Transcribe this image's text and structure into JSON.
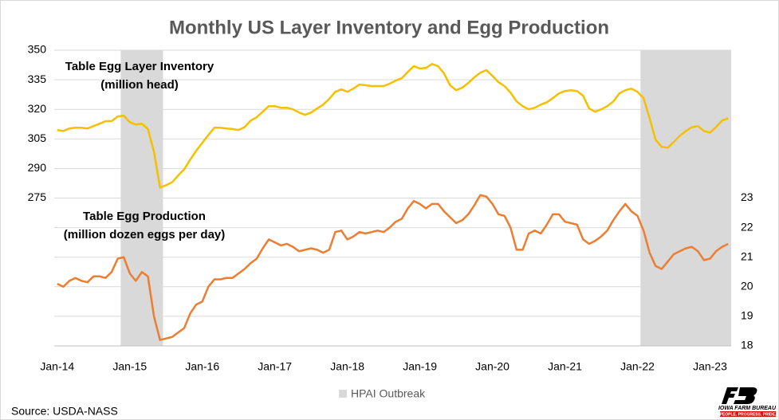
{
  "chart_data": {
    "type": "line",
    "title": "Monthly US Layer Inventory and Egg Production",
    "categories": [
      "Jan-14",
      null,
      null,
      null,
      null,
      null,
      null,
      null,
      null,
      null,
      null,
      null,
      "Jan-15",
      null,
      null,
      null,
      null,
      null,
      null,
      null,
      null,
      null,
      null,
      null,
      "Jan-16",
      null,
      null,
      null,
      null,
      null,
      null,
      null,
      null,
      null,
      null,
      null,
      "Jan-17",
      null,
      null,
      null,
      null,
      null,
      null,
      null,
      null,
      null,
      null,
      null,
      "Jan-18",
      null,
      null,
      null,
      null,
      null,
      null,
      null,
      null,
      null,
      null,
      null,
      "Jan-19",
      null,
      null,
      null,
      null,
      null,
      null,
      null,
      null,
      null,
      null,
      null,
      "Jan-20",
      null,
      null,
      null,
      null,
      null,
      null,
      null,
      null,
      null,
      null,
      null,
      "Jan-21",
      null,
      null,
      null,
      null,
      null,
      null,
      null,
      null,
      null,
      null,
      null,
      "Jan-22",
      null,
      null,
      null,
      null,
      null,
      null,
      null,
      null,
      null,
      null,
      null,
      "Jan-23",
      null,
      null,
      null
    ],
    "series": [
      {
        "name": "Table Egg Layer Inventory",
        "color": "#f5c000",
        "axis": "y",
        "values": [
          309.5,
          309,
          310.3,
          310.7,
          310.7,
          310.3,
          311.5,
          312.7,
          314,
          314,
          316.4,
          316.8,
          313.5,
          312.3,
          312.7,
          310,
          298.5,
          280.3,
          281.5,
          283,
          286.4,
          289.6,
          294.5,
          299,
          303,
          307,
          310.7,
          310.7,
          310.3,
          310,
          309.5,
          311,
          314.3,
          316,
          318.8,
          321.6,
          321.6,
          320.8,
          320.8,
          320,
          318.4,
          317.2,
          318.4,
          320.4,
          322.4,
          325.3,
          328.9,
          330.1,
          328.9,
          330.5,
          332.6,
          332.2,
          331.8,
          331.8,
          331.8,
          333,
          334.6,
          335.8,
          339,
          341.9,
          340.7,
          341,
          343,
          341.9,
          338.2,
          332.2,
          329.7,
          331,
          333.4,
          336.2,
          338.6,
          339.9,
          337,
          333.8,
          331.8,
          328.5,
          324,
          321.6,
          320,
          320.8,
          322.4,
          323.6,
          325.7,
          328.1,
          329.3,
          329.7,
          329.3,
          326.9,
          320.4,
          318.8,
          320,
          321.6,
          324,
          328.1,
          329.7,
          330.5,
          328.9,
          325.7,
          315.5,
          304.6,
          301,
          300.5,
          303.4,
          306.6,
          309,
          311,
          311.5,
          309,
          308.2,
          311,
          314.3,
          315.5
        ]
      },
      {
        "name": "Table Egg Production",
        "color": "#ed7d31",
        "axis": "y2",
        "values": [
          20.1,
          20,
          20.2,
          20.3,
          20.2,
          20.15,
          20.35,
          20.35,
          20.3,
          20.5,
          20.95,
          21,
          20.45,
          20.2,
          20.5,
          20.35,
          19,
          18.2,
          18.25,
          18.3,
          18.45,
          18.6,
          19.1,
          19.4,
          19.5,
          20,
          20.25,
          20.25,
          20.3,
          20.3,
          20.45,
          20.6,
          20.8,
          20.95,
          21.3,
          21.6,
          21.5,
          21.4,
          21.45,
          21.35,
          21.2,
          21.25,
          21.3,
          21.25,
          21.15,
          21.25,
          21.85,
          21.9,
          21.6,
          21.7,
          21.85,
          21.8,
          21.85,
          21.9,
          21.85,
          22,
          22.2,
          22.3,
          22.65,
          22.9,
          22.8,
          22.65,
          22.8,
          22.8,
          22.55,
          22.35,
          22.15,
          22.25,
          22.45,
          22.75,
          23.1,
          23.05,
          22.8,
          22.45,
          22.4,
          22,
          21.25,
          21.25,
          21.8,
          21.9,
          21.8,
          22.1,
          22.45,
          22.45,
          22.2,
          22.15,
          22.1,
          21.6,
          21.45,
          21.55,
          21.7,
          21.9,
          22.25,
          22.55,
          22.8,
          22.55,
          22.4,
          21.9,
          21.15,
          20.7,
          20.6,
          20.85,
          21.1,
          21.2,
          21.3,
          21.35,
          21.2,
          20.9,
          20.95,
          21.2,
          21.35,
          21.45
        ]
      }
    ],
    "ylim": [
      200,
      350
    ],
    "yticks": [
      275,
      290,
      305,
      320,
      335,
      350
    ],
    "y2lim": [
      18,
      28
    ],
    "y2ticks": [
      18,
      19,
      20,
      21,
      22,
      23
    ],
    "grid": true,
    "shaded": {
      "name": "HPAI Outbreak",
      "color": "#d9d9d9",
      "periods": [
        [
          10.5,
          17.5
        ],
        [
          96.5,
          111.5
        ]
      ]
    },
    "annotations": [
      [
        "Table Egg Layer Inventory",
        "(million head)"
      ],
      [
        "Table Egg Production",
        "(million dozen eggs per day)"
      ]
    ],
    "source": "Source: USDA-NASS",
    "logo": {
      "name": "IOWA FARM BUREAU",
      "tagline": "PEOPLE. PROGRESS. PRIDE."
    }
  }
}
